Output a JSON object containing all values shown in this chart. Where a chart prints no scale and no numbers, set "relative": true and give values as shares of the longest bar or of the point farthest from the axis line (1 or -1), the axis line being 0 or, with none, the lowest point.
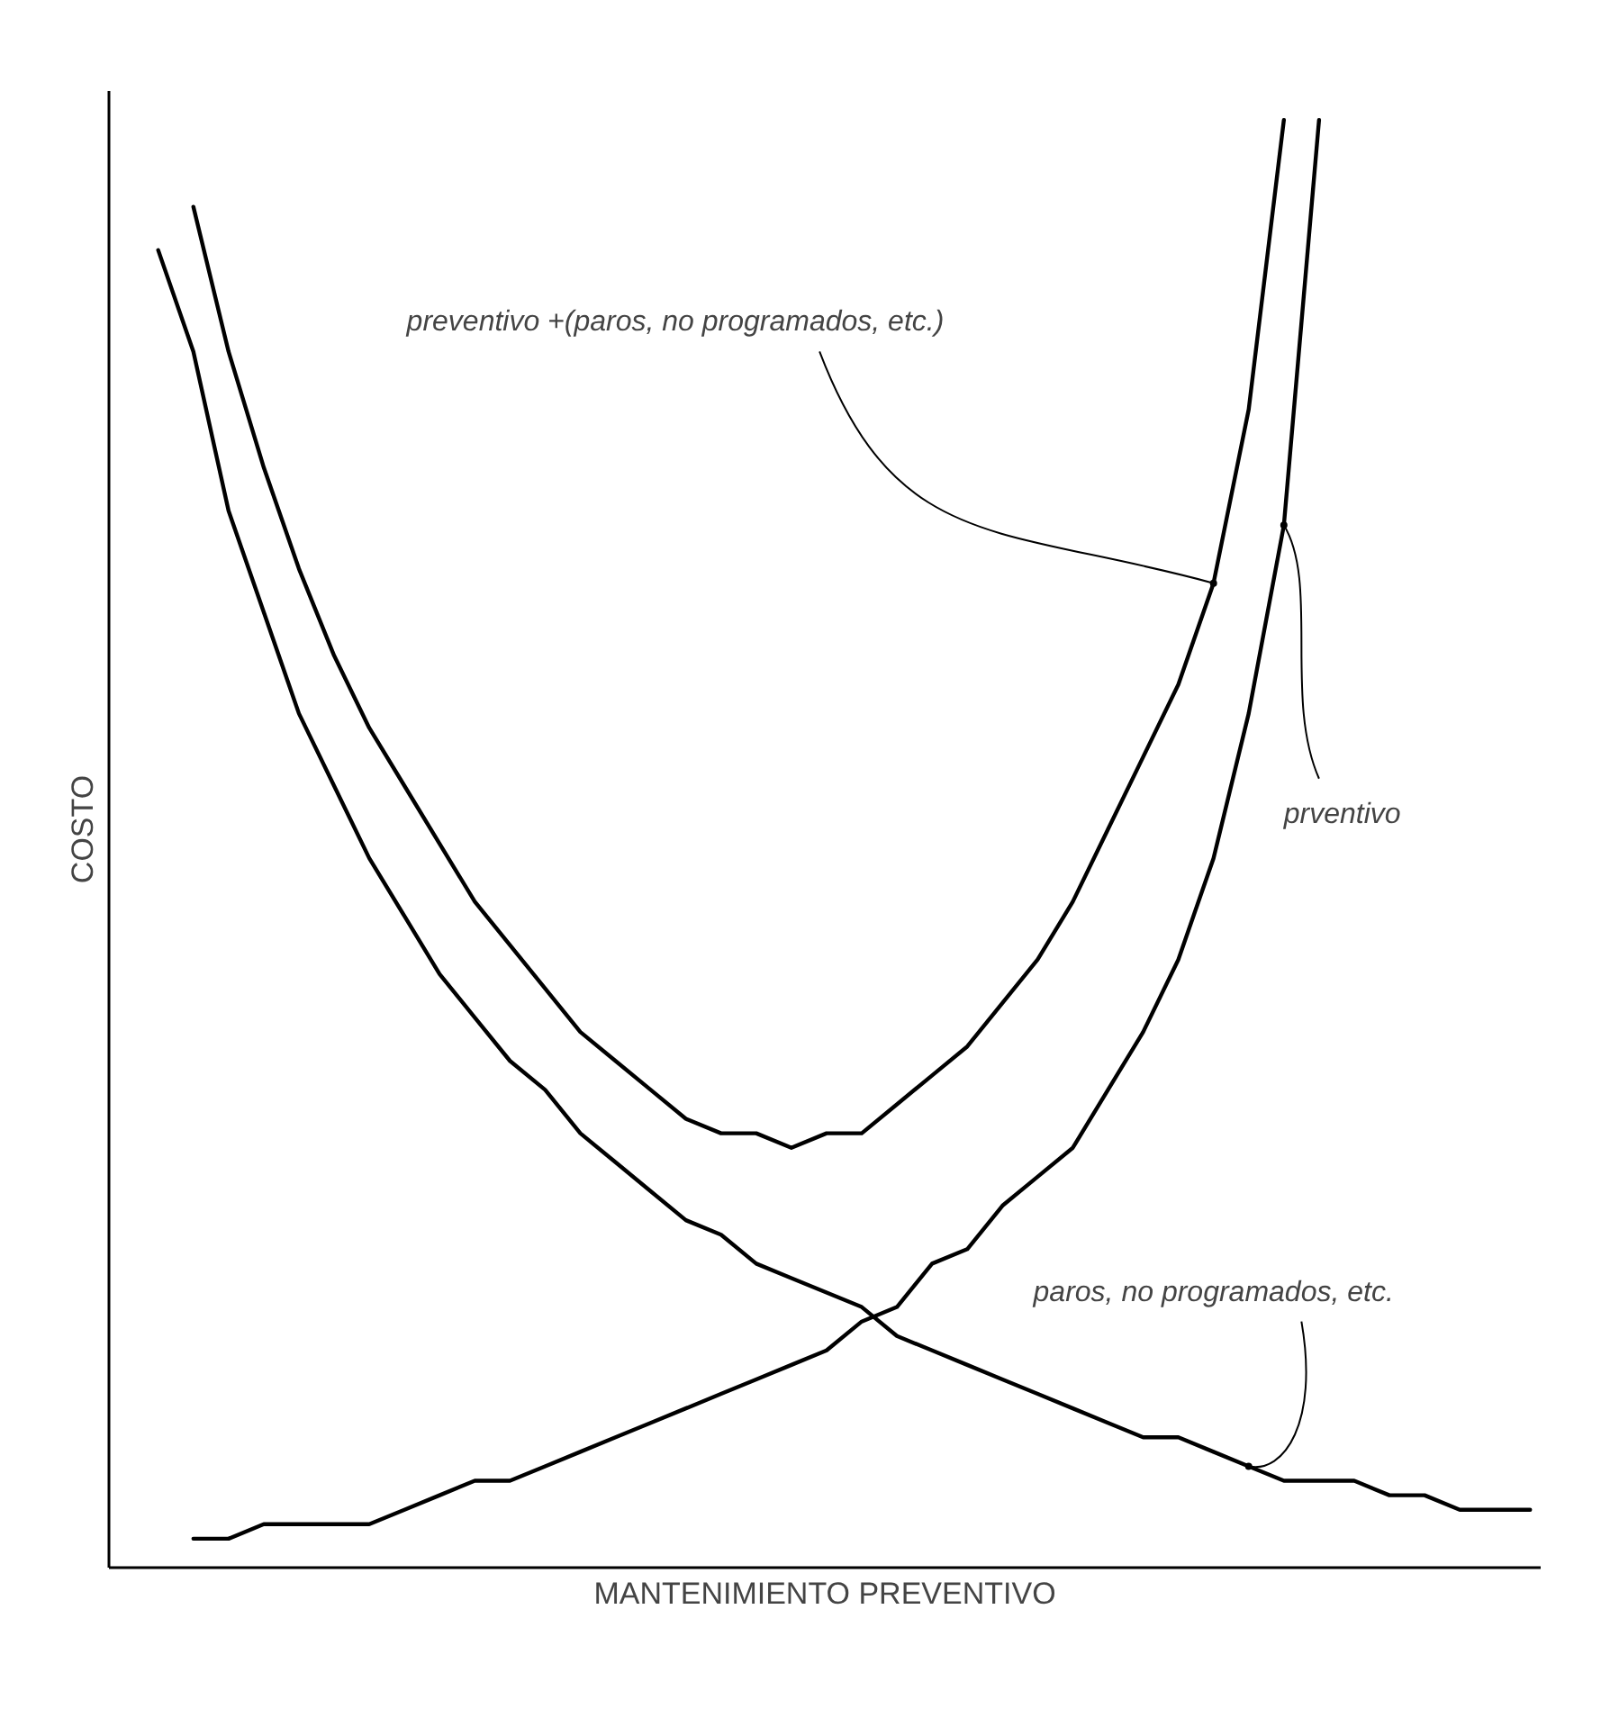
{
  "chart_data": {
    "type": "line",
    "relative": true,
    "xlabel": "MANTENIMIENTO PREVENTIVO",
    "ylabel": "COSTO",
    "categories": [
      null,
      null,
      null,
      null,
      null,
      null,
      null,
      null,
      null,
      null,
      null,
      null,
      null,
      null,
      null,
      null,
      null,
      null,
      null,
      null,
      null,
      null,
      null,
      null,
      null,
      null,
      null,
      null,
      null,
      null,
      null,
      null,
      null,
      null,
      null,
      null,
      null,
      null,
      null,
      null,
      null
    ],
    "series": [
      {
        "color": "#000000",
        "values": [
          null,
          0.91,
          0.84,
          0.73,
          0.66,
          0.59,
          0.54,
          0.49,
          0.45,
          0.41,
          0.38,
          0.35,
          0.33,
          0.3,
          0.28,
          0.26,
          0.24,
          0.23,
          0.21,
          0.2,
          0.19,
          0.18,
          0.16,
          0.15,
          0.14,
          0.13,
          0.12,
          0.11,
          0.1,
          0.09,
          0.09,
          0.08,
          0.07,
          0.06,
          0.06,
          0.06,
          0.05,
          0.05,
          0.04,
          0.04,
          0.04
        ]
      },
      {
        "color": "#000000",
        "values": [
          null,
          null,
          0.02,
          0.02,
          0.03,
          0.03,
          0.03,
          0.03,
          0.04,
          0.05,
          0.06,
          0.06,
          0.07,
          0.08,
          0.09,
          0.1,
          0.11,
          0.12,
          0.13,
          0.14,
          0.15,
          0.17,
          0.18,
          0.21,
          0.22,
          0.25,
          0.27,
          0.29,
          0.33,
          0.37,
          0.42,
          0.49,
          0.59,
          0.72,
          1.0,
          null,
          null,
          null,
          null,
          null,
          null
        ]
      },
      {
        "color": "#000000",
        "values": [
          null,
          null,
          0.94,
          0.84,
          0.76,
          0.69,
          0.63,
          0.58,
          0.54,
          0.5,
          0.46,
          0.43,
          0.4,
          0.37,
          0.35,
          0.33,
          0.31,
          0.3,
          0.3,
          0.29,
          0.3,
          0.3,
          0.32,
          0.34,
          0.36,
          0.39,
          0.42,
          0.46,
          0.51,
          0.56,
          0.61,
          0.68,
          0.8,
          1.0,
          null,
          null,
          null,
          null,
          null,
          null,
          null
        ]
      }
    ],
    "annotations": [
      "preventivo +(paros, no programados, etc.)",
      "prventivo",
      "paros, no programados, etc."
    ]
  }
}
